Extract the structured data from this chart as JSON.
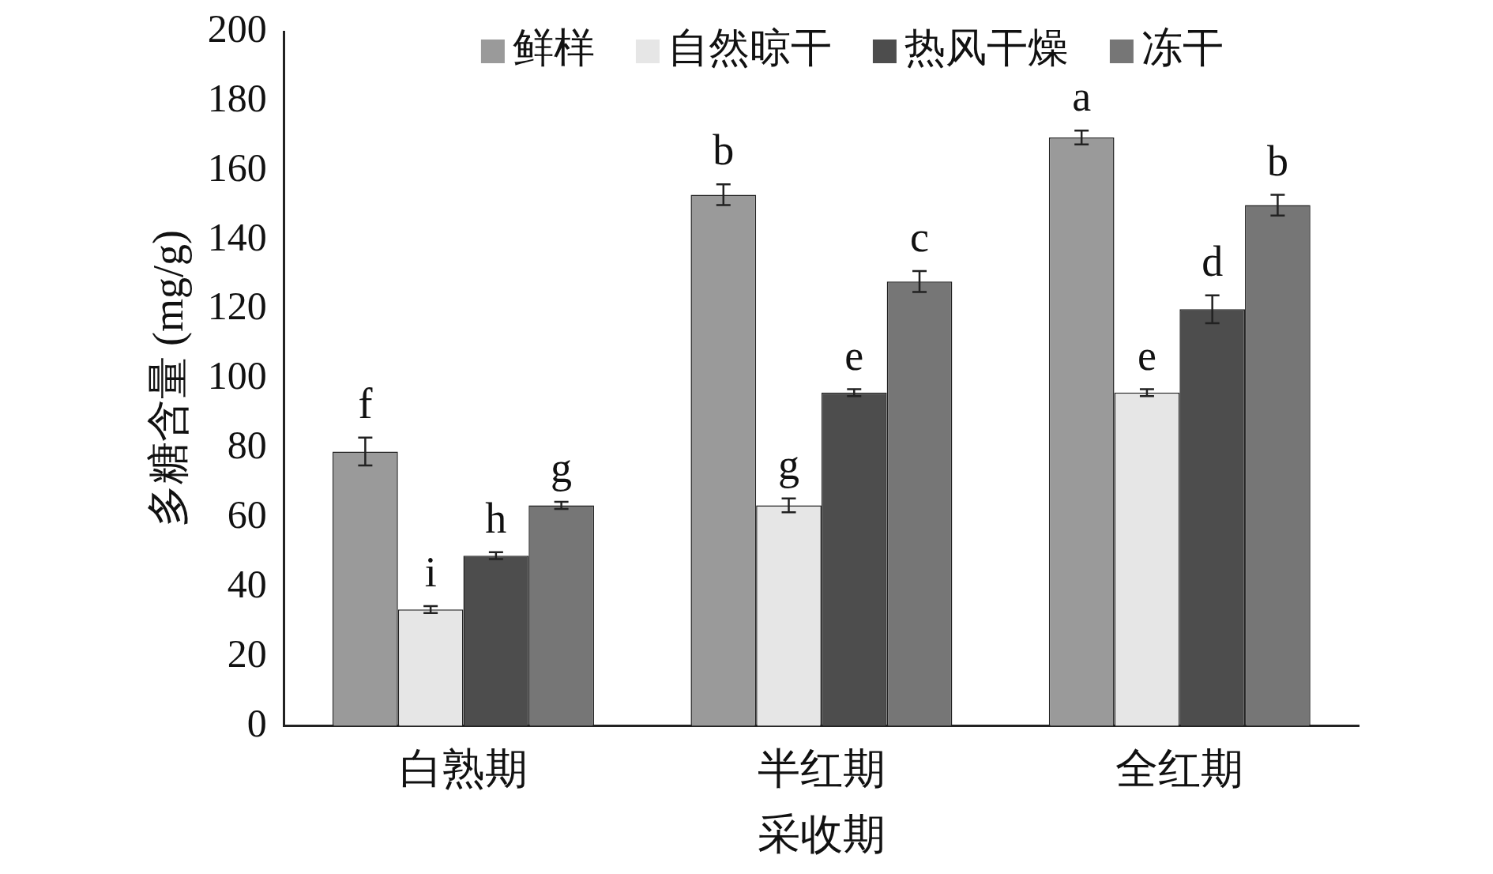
{
  "chart_data": {
    "type": "bar",
    "xlabel": "采收期",
    "ylabel": "多糖含量 (mg/g)",
    "categories": [
      "白熟期",
      "半红期",
      "全红期"
    ],
    "series": [
      {
        "name": "鲜样",
        "color": "#9a9a9a",
        "values": [
          79,
          153,
          169.5
        ],
        "errors": [
          4,
          3,
          2
        ],
        "value_labels": [
          "f",
          "b",
          "a"
        ]
      },
      {
        "name": "自然晾干",
        "color": "#e6e6e6",
        "values": [
          33.5,
          63.5,
          96
        ],
        "errors": [
          1,
          2,
          1
        ],
        "value_labels": [
          "i",
          "g",
          "e"
        ]
      },
      {
        "name": "热风干燥",
        "color": "#4d4d4d",
        "values": [
          49,
          96,
          120
        ],
        "errors": [
          1,
          1,
          4
        ],
        "value_labels": [
          "h",
          "e",
          "d"
        ]
      },
      {
        "name": "冻干",
        "color": "#767676",
        "values": [
          63.5,
          128,
          150
        ],
        "errors": [
          1,
          3,
          3
        ],
        "value_labels": [
          "g",
          "c",
          "b"
        ]
      }
    ],
    "ylim": [
      0,
      200
    ],
    "yticks": [
      0,
      20,
      40,
      60,
      80,
      100,
      120,
      140,
      160,
      180,
      200
    ],
    "grid": false,
    "legend": "top"
  }
}
